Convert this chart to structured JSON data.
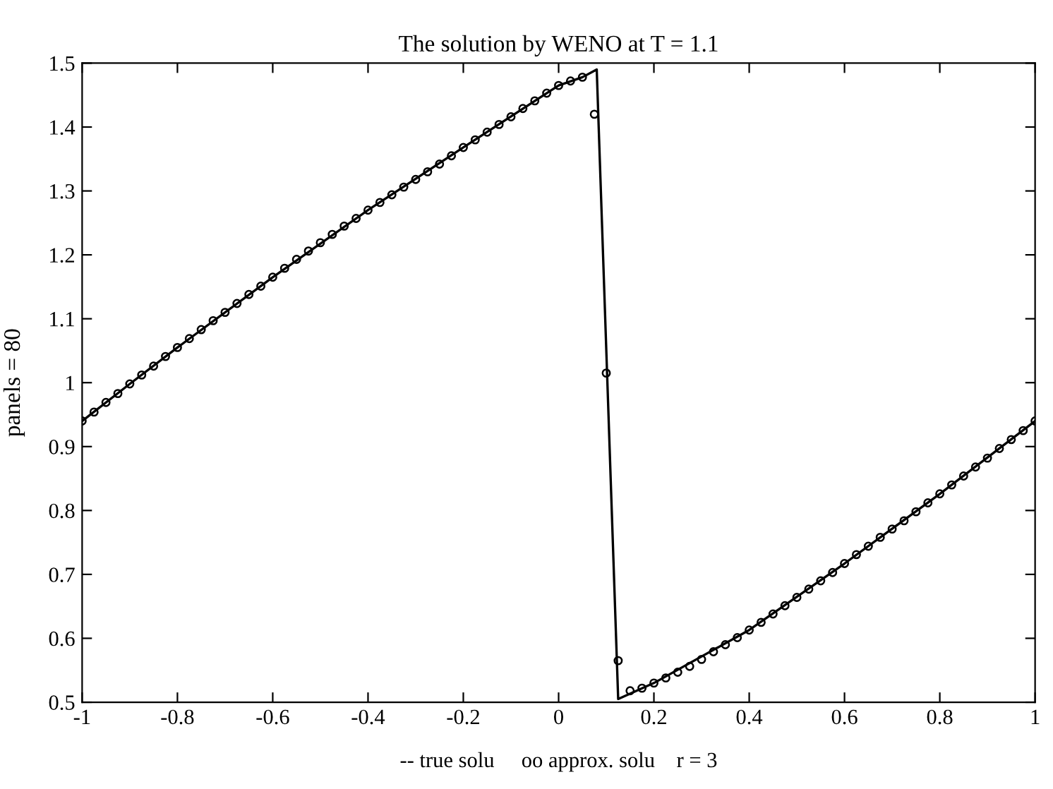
{
  "chart_data": {
    "type": "line",
    "title": "The solution by WENO at T = 1.1",
    "xlabel": "-- true solu     oo approx. solu    r = 3",
    "ylabel": "panels = 80",
    "xlim": [
      -1,
      1
    ],
    "xticks": [
      -1,
      -0.8,
      -0.6,
      -0.4,
      -0.2,
      0,
      0.2,
      0.4,
      0.6,
      0.8,
      1
    ],
    "ylim": [
      0.5,
      1.5
    ],
    "yticks": [
      0.5,
      0.6,
      0.7,
      0.8,
      0.9,
      1,
      1.1,
      1.2,
      1.3,
      1.4,
      1.5
    ],
    "grid": false,
    "legend": false,
    "series": [
      {
        "color": "#000000",
        "marker": "none",
        "line_style": "solid",
        "x": [
          -1,
          -0.9,
          -0.8,
          -0.6,
          -0.4,
          -0.2,
          0,
          0.05,
          0.08,
          0.125,
          0.2,
          0.4,
          0.6,
          0.8,
          1
        ],
        "values": [
          0.94,
          0.998,
          1.055,
          1.165,
          1.27,
          1.368,
          1.465,
          1.478,
          1.49,
          0.505,
          0.53,
          0.613,
          0.717,
          0.826,
          0.94
        ]
      },
      {
        "type": "scatter",
        "color": "#000000",
        "marker": "circle",
        "x": [
          -1,
          -0.975,
          -0.95,
          -0.925,
          -0.9,
          -0.875,
          -0.85,
          -0.825,
          -0.8,
          -0.775,
          -0.75,
          -0.725,
          -0.7,
          -0.675,
          -0.65,
          -0.625,
          -0.6,
          -0.575,
          -0.55,
          -0.525,
          -0.5,
          -0.475,
          -0.45,
          -0.425,
          -0.4,
          -0.375,
          -0.35,
          -0.325,
          -0.3,
          -0.275,
          -0.25,
          -0.225,
          -0.2,
          -0.175,
          -0.15,
          -0.125,
          -0.1,
          -0.075,
          -0.05,
          -0.025,
          0,
          0.025,
          0.05,
          0.075,
          0.1,
          0.125,
          0.15,
          0.175,
          0.2,
          0.225,
          0.25,
          0.275,
          0.3,
          0.325,
          0.35,
          0.375,
          0.4,
          0.425,
          0.45,
          0.475,
          0.5,
          0.525,
          0.55,
          0.575,
          0.6,
          0.625,
          0.65,
          0.675,
          0.7,
          0.725,
          0.75,
          0.775,
          0.8,
          0.825,
          0.85,
          0.875,
          0.9,
          0.925,
          0.95,
          0.975,
          1
        ],
        "values": [
          0.94,
          0.954,
          0.969,
          0.983,
          0.998,
          1.012,
          1.026,
          1.041,
          1.055,
          1.069,
          1.083,
          1.097,
          1.11,
          1.124,
          1.138,
          1.151,
          1.165,
          1.179,
          1.193,
          1.206,
          1.219,
          1.232,
          1.245,
          1.257,
          1.27,
          1.282,
          1.294,
          1.306,
          1.318,
          1.33,
          1.342,
          1.355,
          1.368,
          1.38,
          1.392,
          1.404,
          1.416,
          1.429,
          1.441,
          1.453,
          1.465,
          1.472,
          1.478,
          1.42,
          1.015,
          0.565,
          0.518,
          0.522,
          0.53,
          0.538,
          0.547,
          0.556,
          0.567,
          0.579,
          0.59,
          0.601,
          0.613,
          0.625,
          0.638,
          0.651,
          0.664,
          0.677,
          0.69,
          0.703,
          0.717,
          0.731,
          0.744,
          0.758,
          0.771,
          0.784,
          0.798,
          0.812,
          0.826,
          0.84,
          0.854,
          0.868,
          0.882,
          0.897,
          0.911,
          0.925,
          0.94
        ]
      }
    ]
  }
}
